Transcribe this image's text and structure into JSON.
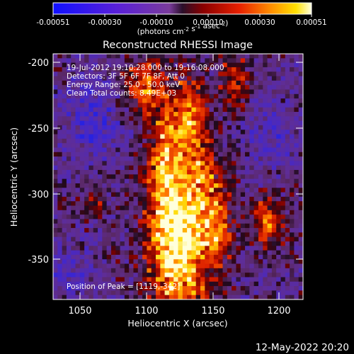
{
  "colorbar": {
    "ticks": [
      "-0.00051",
      "-0.00030",
      "-0.00010",
      "0.00010",
      "0.00030",
      "0.00051"
    ],
    "units_html": "(photons cm<sup>-2</sup> s<sup>-1</sup> asec<sup>-2</sup>)",
    "units": "(photons cm-2 s-1 asec-2)"
  },
  "image": {
    "title": "Reconstructed RHESSI Image",
    "xlabel": "Heliocentric X (arcsec)",
    "ylabel": "Heliocentric Y (arcsec)",
    "x_ticks": [
      "1050",
      "1100",
      "1150",
      "1200"
    ],
    "y_ticks": [
      "-200",
      "-250",
      "-300",
      "-350"
    ],
    "info_lines": [
      "19-Jul-2012 19:10:28.000 to 19:16:08.000",
      "Detectors: 3F 5F 6F 7F 8F, Att 0",
      "Energy Range: 25.0 - 50.0 keV",
      "Clean     Total counts: 8.49E+03"
    ],
    "peak_label": "Position of Peak = [1119,-342]"
  },
  "footer": {
    "date": "12-May-2022 20:20"
  }
}
